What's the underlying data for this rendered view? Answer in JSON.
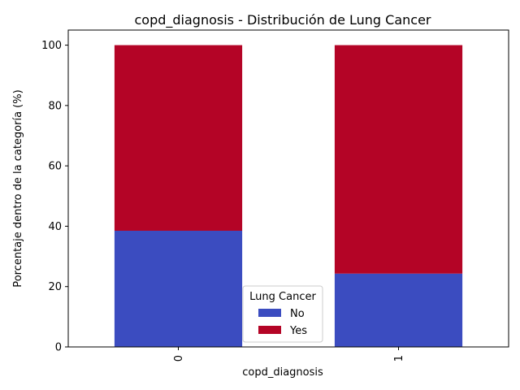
{
  "chart_data": {
    "type": "bar",
    "stacked": true,
    "title": "copd_diagnosis - Distribución de Lung Cancer",
    "xlabel": "copd_diagnosis",
    "ylabel": "Porcentaje dentro de la categoría (%)",
    "categories": [
      "0",
      "1"
    ],
    "x_tick_rotation": "vertical",
    "ylim": [
      0,
      105
    ],
    "yticks": [
      0,
      20,
      40,
      60,
      80,
      100
    ],
    "grid": false,
    "legend": {
      "title": "Lung Cancer",
      "placement": "lower center"
    },
    "series": [
      {
        "name": "No",
        "color": "#3b4cc0",
        "values": [
          38.5,
          24.3
        ]
      },
      {
        "name": "Yes",
        "color": "#b40426",
        "values": [
          61.5,
          75.7
        ]
      }
    ]
  }
}
